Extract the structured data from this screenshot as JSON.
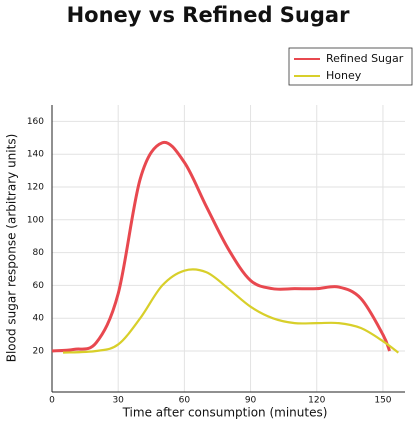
{
  "chart_data": {
    "type": "line",
    "title": "Honey vs Refined Sugar",
    "x_label": "Time after consumption (minutes)",
    "y_label": "Blood sugar response (arbitrary units)",
    "xlim": [
      0,
      160
    ],
    "ylim": [
      -5,
      170
    ],
    "xticks": [
      0,
      30,
      60,
      90,
      120,
      150
    ],
    "yticks": [
      20,
      40,
      60,
      80,
      100,
      120,
      140,
      160
    ],
    "grid": true,
    "legend": "top-right",
    "series": [
      {
        "name": "Refined Sugar",
        "color": "#e8484f",
        "x": [
          0,
          10,
          20,
          30,
          40,
          50,
          60,
          70,
          80,
          90,
          100,
          110,
          120,
          130,
          140,
          150,
          153
        ],
        "values": [
          20,
          21,
          25,
          55,
          125,
          147,
          135,
          108,
          82,
          63,
          58,
          58,
          58,
          59,
          52,
          30,
          20
        ]
      },
      {
        "name": "Honey",
        "color": "#d8cf2a",
        "x": [
          5,
          20,
          30,
          40,
          50,
          60,
          70,
          80,
          90,
          100,
          110,
          120,
          130,
          140,
          150,
          157
        ],
        "values": [
          19,
          20,
          24,
          40,
          60,
          69,
          68,
          58,
          47,
          40,
          37,
          37,
          37,
          34,
          26,
          19
        ]
      }
    ]
  }
}
